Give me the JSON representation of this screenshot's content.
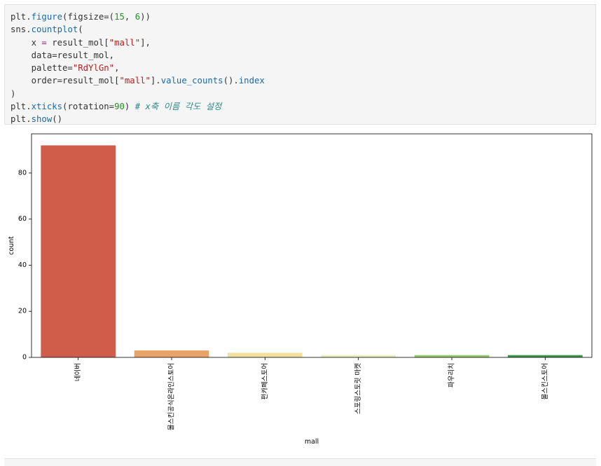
{
  "code_cell": {
    "lines": [
      [
        {
          "t": "plt."
        },
        {
          "t": "figure",
          "c": "kw"
        },
        {
          "t": "(figsize=("
        },
        {
          "t": "15",
          "c": "num"
        },
        {
          "t": ", "
        },
        {
          "t": "6",
          "c": "num"
        },
        {
          "t": "))"
        }
      ],
      [
        {
          "t": "sns."
        },
        {
          "t": "countplot",
          "c": "kw"
        },
        {
          "t": "("
        }
      ],
      [
        {
          "t": "    x "
        },
        {
          "t": "=",
          "c": "op"
        },
        {
          "t": " result_mol["
        },
        {
          "t": "\"mall\"",
          "c": "str"
        },
        {
          "t": "],"
        }
      ],
      [
        {
          "t": "    data=result_mol,"
        }
      ],
      [
        {
          "t": "    palette="
        },
        {
          "t": "\"RdYlGn\"",
          "c": "str"
        },
        {
          "t": ","
        }
      ],
      [
        {
          "t": "    order=result_mol["
        },
        {
          "t": "\"mall\"",
          "c": "str"
        },
        {
          "t": "]."
        },
        {
          "t": "value_counts",
          "c": "kw"
        },
        {
          "t": "()."
        },
        {
          "t": "index",
          "c": "kw"
        }
      ],
      [
        {
          "t": ")"
        }
      ],
      [
        {
          "t": "plt."
        },
        {
          "t": "xticks",
          "c": "kw"
        },
        {
          "t": "(rotation="
        },
        {
          "t": "90",
          "c": "num"
        },
        {
          "t": ") "
        },
        {
          "t": "# x축 이름 각도 설정",
          "c": "cm"
        }
      ],
      [
        {
          "t": "plt."
        },
        {
          "t": "show",
          "c": "kw"
        },
        {
          "t": "()"
        }
      ]
    ]
  },
  "chart_data": {
    "type": "bar",
    "categories": [
      "네이버",
      "몰스킨공식온라인스토어",
      "펀카페스토어",
      "스포링스토릿 마켓",
      "파우리치",
      "몰스킨스토어"
    ],
    "values": [
      92,
      3,
      2,
      1,
      1,
      1
    ],
    "colors": [
      "#d05c4a",
      "#e8a468",
      "#f1e0a0",
      "#e9eec0",
      "#96cc6a",
      "#3d9a4c"
    ],
    "xlabel": "mall",
    "ylabel": "count",
    "ylim": [
      0,
      97
    ],
    "yticks": [
      0,
      20,
      40,
      60,
      80
    ],
    "grid": false
  }
}
